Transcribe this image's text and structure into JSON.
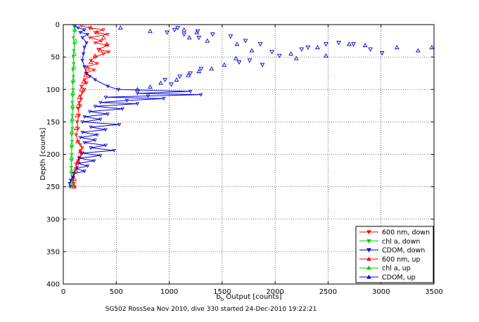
{
  "chart_data": {
    "type": "line",
    "title": "",
    "caption": "SG502 RossSea Nov 2010, dive 330 started 24-Dec-2010 19:22:21",
    "xlabel_base": "b",
    "xlabel_sub": "b",
    "xlabel_rest": " Output [counts]",
    "ylabel": "Depth [counts]",
    "xlim": [
      0,
      3500
    ],
    "ylim": [
      0,
      400
    ],
    "y_reversed": true,
    "xticks": [
      0,
      500,
      1000,
      1500,
      2000,
      2500,
      3000,
      3500
    ],
    "yticks": [
      0,
      50,
      100,
      150,
      200,
      250,
      300,
      350,
      400
    ],
    "grid": true,
    "legend_position": "bottom-right",
    "series": [
      {
        "name": "600 nm, down",
        "color": "#ff0000",
        "marker": "triangle-down",
        "style": "line",
        "points": [
          [
            170,
            2
          ],
          [
            250,
            5
          ],
          [
            380,
            8
          ],
          [
            300,
            12
          ],
          [
            420,
            15
          ],
          [
            250,
            20
          ],
          [
            360,
            25
          ],
          [
            300,
            28
          ],
          [
            420,
            32
          ],
          [
            330,
            38
          ],
          [
            430,
            42
          ],
          [
            380,
            45
          ],
          [
            300,
            50
          ],
          [
            260,
            55
          ],
          [
            320,
            60
          ],
          [
            220,
            65
          ],
          [
            290,
            70
          ],
          [
            210,
            75
          ],
          [
            250,
            80
          ],
          [
            200,
            85
          ],
          [
            220,
            90
          ],
          [
            170,
            95
          ],
          [
            200,
            100
          ],
          [
            180,
            105
          ],
          [
            160,
            110
          ],
          [
            170,
            115
          ],
          [
            150,
            120
          ],
          [
            160,
            125
          ],
          [
            140,
            130
          ],
          [
            150,
            140
          ],
          [
            130,
            150
          ],
          [
            140,
            160
          ],
          [
            120,
            170
          ],
          [
            140,
            180
          ],
          [
            160,
            185
          ],
          [
            180,
            190
          ],
          [
            160,
            195
          ],
          [
            170,
            200
          ],
          [
            150,
            205
          ],
          [
            140,
            210
          ],
          [
            120,
            215
          ],
          [
            130,
            220
          ],
          [
            110,
            225
          ],
          [
            100,
            230
          ],
          [
            95,
            235
          ],
          [
            90,
            240
          ],
          [
            100,
            245
          ],
          [
            110,
            250
          ]
        ]
      },
      {
        "name": "chl a, down",
        "color": "#00cc00",
        "marker": "triangle-down",
        "style": "line",
        "points": [
          [
            100,
            2
          ],
          [
            105,
            10
          ],
          [
            95,
            20
          ],
          [
            105,
            30
          ],
          [
            100,
            40
          ],
          [
            95,
            50
          ],
          [
            98,
            60
          ],
          [
            92,
            70
          ],
          [
            95,
            80
          ],
          [
            90,
            90
          ],
          [
            92,
            100
          ],
          [
            88,
            110
          ],
          [
            85,
            120
          ],
          [
            88,
            130
          ],
          [
            85,
            140
          ],
          [
            82,
            150
          ],
          [
            85,
            160
          ],
          [
            80,
            170
          ],
          [
            82,
            180
          ],
          [
            78,
            190
          ],
          [
            80,
            200
          ],
          [
            78,
            210
          ],
          [
            75,
            220
          ],
          [
            78,
            230
          ],
          [
            80,
            240
          ],
          [
            85,
            250
          ]
        ]
      },
      {
        "name": "CDOM, down",
        "color": "#0000dd",
        "marker": "triangle-down",
        "style": "mixed",
        "scatter_points": [
          [
            1080,
            5
          ],
          [
            1050,
            8
          ],
          [
            980,
            12
          ],
          [
            1140,
            15
          ],
          [
            1270,
            10
          ],
          [
            1410,
            15
          ],
          [
            1280,
            20
          ],
          [
            1580,
            18
          ],
          [
            1720,
            25
          ],
          [
            1860,
            30
          ],
          [
            1970,
            42
          ],
          [
            2040,
            48
          ],
          [
            2250,
            38
          ],
          [
            2310,
            35
          ],
          [
            2480,
            30
          ],
          [
            2600,
            28
          ],
          [
            2740,
            30
          ],
          [
            2900,
            38
          ],
          [
            3010,
            44
          ],
          [
            1760,
            55
          ],
          [
            1660,
            58
          ],
          [
            1880,
            62
          ],
          [
            1300,
            68
          ],
          [
            1200,
            75
          ],
          [
            1100,
            80
          ],
          [
            960,
            85
          ],
          [
            1020,
            92
          ]
        ],
        "line_points": [
          [
            110,
            2
          ],
          [
            140,
            5
          ],
          [
            200,
            8
          ],
          [
            160,
            12
          ],
          [
            230,
            15
          ],
          [
            180,
            20
          ],
          [
            220,
            28
          ],
          [
            200,
            35
          ],
          [
            190,
            45
          ],
          [
            180,
            55
          ],
          [
            200,
            65
          ],
          [
            220,
            75
          ],
          [
            300,
            85
          ],
          [
            420,
            95
          ],
          [
            520,
            100
          ],
          [
            1200,
            103
          ],
          [
            700,
            106
          ],
          [
            1300,
            108
          ],
          [
            800,
            110
          ],
          [
            400,
            112
          ],
          [
            950,
            114
          ],
          [
            600,
            117
          ],
          [
            350,
            120
          ],
          [
            700,
            122
          ],
          [
            300,
            126
          ],
          [
            560,
            130
          ],
          [
            250,
            134
          ],
          [
            420,
            138
          ],
          [
            200,
            142
          ],
          [
            350,
            146
          ],
          [
            180,
            150
          ],
          [
            530,
            154
          ],
          [
            260,
            158
          ],
          [
            400,
            162
          ],
          [
            180,
            166
          ],
          [
            320,
            170
          ],
          [
            160,
            174
          ],
          [
            300,
            178
          ],
          [
            200,
            182
          ],
          [
            400,
            186
          ],
          [
            260,
            190
          ],
          [
            480,
            194
          ],
          [
            180,
            198
          ],
          [
            350,
            202
          ],
          [
            150,
            206
          ],
          [
            290,
            210
          ],
          [
            140,
            214
          ],
          [
            230,
            218
          ],
          [
            120,
            222
          ],
          [
            200,
            226
          ],
          [
            100,
            230
          ],
          [
            90,
            235
          ],
          [
            70,
            240
          ],
          [
            60,
            245
          ],
          [
            65,
            250
          ]
        ]
      },
      {
        "name": "600 nm, up",
        "color": "#ff0000",
        "marker": "triangle-up",
        "style": "scatter",
        "points": [
          [
            260,
            5
          ],
          [
            320,
            12
          ],
          [
            380,
            20
          ],
          [
            410,
            30
          ],
          [
            350,
            40
          ],
          [
            300,
            48
          ],
          [
            260,
            58
          ],
          [
            230,
            68
          ],
          [
            210,
            78
          ],
          [
            190,
            88
          ],
          [
            170,
            100
          ],
          [
            150,
            112
          ],
          [
            140,
            125
          ],
          [
            130,
            140
          ],
          [
            120,
            160
          ],
          [
            135,
            180
          ],
          [
            160,
            195
          ],
          [
            140,
            210
          ],
          [
            120,
            225
          ],
          [
            105,
            238
          ],
          [
            100,
            250
          ]
        ]
      },
      {
        "name": "chl a, up",
        "color": "#00cc00",
        "marker": "triangle-up",
        "style": "scatter",
        "points": [
          [
            110,
            8
          ],
          [
            115,
            25
          ],
          [
            105,
            45
          ],
          [
            100,
            65
          ],
          [
            95,
            85
          ],
          [
            90,
            105
          ],
          [
            88,
            125
          ],
          [
            85,
            145
          ],
          [
            82,
            165
          ],
          [
            80,
            185
          ],
          [
            78,
            205
          ],
          [
            76,
            225
          ],
          [
            80,
            245
          ]
        ]
      },
      {
        "name": "CDOM, up",
        "color": "#0000dd",
        "marker": "triangle-up",
        "style": "scatter",
        "points": [
          [
            540,
            5
          ],
          [
            820,
            10
          ],
          [
            1260,
            12
          ],
          [
            1140,
            8
          ],
          [
            1190,
            20
          ],
          [
            1360,
            25
          ],
          [
            1640,
            30
          ],
          [
            1780,
            40
          ],
          [
            2150,
            45
          ],
          [
            2400,
            35
          ],
          [
            2700,
            30
          ],
          [
            2850,
            32
          ],
          [
            3150,
            35
          ],
          [
            3350,
            40
          ],
          [
            3480,
            35
          ],
          [
            2480,
            48
          ],
          [
            2200,
            52
          ],
          [
            1630,
            52
          ],
          [
            1520,
            62
          ],
          [
            1400,
            68
          ],
          [
            1280,
            72
          ],
          [
            1180,
            78
          ],
          [
            1070,
            85
          ],
          [
            920,
            90
          ],
          [
            820,
            96
          ],
          [
            700,
            100
          ]
        ]
      }
    ]
  }
}
